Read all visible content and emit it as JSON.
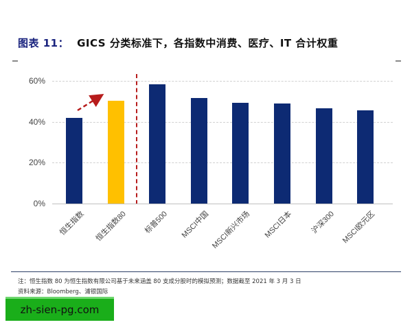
{
  "header": {
    "prefix": "图表 11：",
    "title": "GICS 分类标准下，各指数中消费、医疗、IT 合计权重"
  },
  "chart_data": {
    "type": "bar",
    "title": "GICS 分类标准下，各指数中消费、医疗、IT 合计权重",
    "categories": [
      "恒生指数",
      "恒生指数80",
      "标普500",
      "MSCI中国",
      "MSCI新兴市场",
      "MSCI日本",
      "沪深300",
      "MSCI欧元区"
    ],
    "values": [
      41.9,
      50.3,
      58.4,
      51.5,
      49.2,
      49.0,
      46.6,
      45.6
    ],
    "unit": "%",
    "colors": [
      "#0d2a73",
      "#ffc000",
      "#0d2a73",
      "#0d2a73",
      "#0d2a73",
      "#0d2a73",
      "#0d2a73",
      "#0d2a73"
    ],
    "xlabel": "",
    "ylabel": "",
    "ylim": [
      0,
      60
    ],
    "yticks": [
      "0%",
      "20%",
      "40%",
      "60%"
    ],
    "grid": true,
    "legend": "none",
    "annotations": [
      "dashed red arrow from 恒生指数 to 恒生指数80",
      "dashed red vertical divider between 恒生指数80 and 标普500"
    ]
  },
  "footer": {
    "note": "注：恒生指数 80 为恒生指数有限公司基于未来涵盖 80 支成分股时的模拟预测；数据截至 2021 年 3 月 3 日",
    "source": "资料来源：Bloomberg、浦银国际"
  },
  "watermark": {
    "text": "zh-sien-pg.com"
  }
}
